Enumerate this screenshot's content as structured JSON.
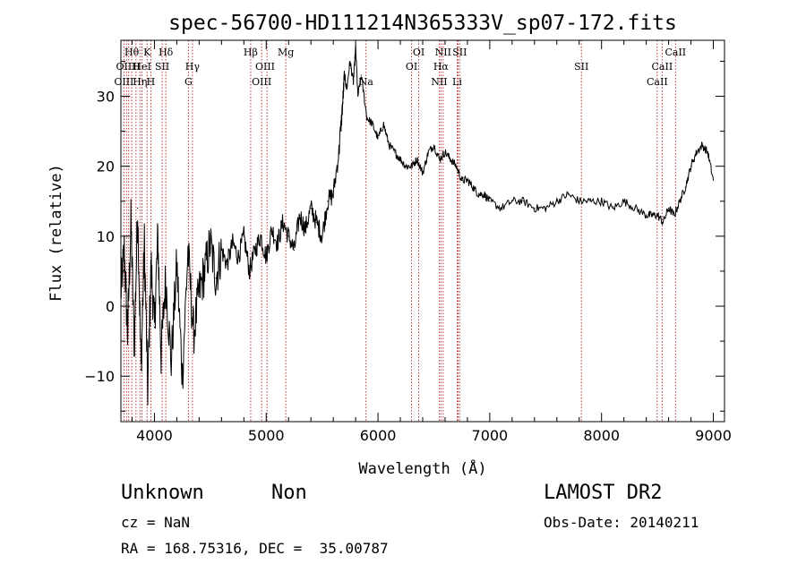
{
  "chart_data": {
    "type": "line",
    "title": "spec-56700-HD111214N365333V_sp07-172.fits",
    "xlabel": "Wavelength (Å)",
    "ylabel": "Flux (relative)",
    "xlim": [
      3700,
      9100
    ],
    "ylim": [
      -16.5,
      38
    ],
    "x_ticks": [
      4000,
      5000,
      6000,
      7000,
      8000,
      9000
    ],
    "y_ticks": [
      -10,
      0,
      10,
      20,
      30
    ],
    "grid": false,
    "series_color": "#000000",
    "line_color": "#b22222",
    "series": [
      {
        "x": [
          3700,
          3730,
          3760,
          3790,
          3820,
          3850,
          3880,
          3910,
          3940,
          3970,
          4000,
          4030,
          4060,
          4100,
          4150,
          4200,
          4250,
          4300,
          4350,
          4400,
          4450,
          4500,
          4550,
          4600,
          4650,
          4700,
          4750,
          4800,
          4850,
          4900,
          4950,
          5000,
          5050,
          5100,
          5150,
          5200,
          5250,
          5300,
          5350,
          5400,
          5450,
          5500,
          5550,
          5600,
          5650,
          5680,
          5700,
          5720,
          5750,
          5780,
          5800,
          5820,
          5850,
          5900,
          5950,
          6000,
          6050,
          6100,
          6150,
          6200,
          6250,
          6300,
          6350,
          6400,
          6450,
          6500,
          6550,
          6600,
          6650,
          6700,
          6750,
          6800,
          6850,
          6900,
          6950,
          7000,
          7100,
          7200,
          7300,
          7400,
          7500,
          7600,
          7700,
          7800,
          7900,
          8000,
          8100,
          8200,
          8300,
          8400,
          8450,
          8500,
          8550,
          8600,
          8650,
          8700,
          8750,
          8800,
          8850,
          8900,
          8950,
          9000
        ],
        "y": [
          2,
          8,
          -4,
          12,
          -6,
          14,
          -9,
          9,
          -12,
          6,
          -3,
          10,
          -7,
          4,
          -8,
          6,
          -10,
          8,
          -4,
          2,
          5,
          9,
          4,
          8,
          6,
          9,
          7,
          10,
          5,
          8,
          10,
          7,
          11,
          9,
          12,
          10,
          8,
          13,
          11,
          14,
          12,
          10,
          15,
          16,
          22,
          28,
          33,
          31,
          35,
          32,
          37,
          30,
          33,
          27,
          26,
          24,
          26,
          23,
          22,
          21,
          20,
          20,
          21,
          19,
          22,
          23,
          21,
          22,
          21,
          20,
          18,
          18,
          17,
          16,
          16,
          15,
          14,
          15,
          15,
          14,
          14,
          15,
          16,
          15,
          15,
          15,
          14,
          15,
          14,
          13,
          13,
          13,
          12,
          14,
          13,
          15,
          17,
          20,
          22,
          23,
          22,
          18
        ]
      }
    ],
    "line_labels": [
      {
        "text": "Hθ",
        "x": 3797,
        "row": 1
      },
      {
        "text": "K",
        "x": 3934,
        "row": 1
      },
      {
        "text": "Hδ",
        "x": 4102,
        "row": 1
      },
      {
        "text": "Hβ",
        "x": 4861,
        "row": 1
      },
      {
        "text": "Mg",
        "x": 5175,
        "row": 1
      },
      {
        "text": "OI",
        "x": 6364,
        "row": 1
      },
      {
        "text": "NII",
        "x": 6583,
        "row": 1
      },
      {
        "text": "SII",
        "x": 6731,
        "row": 1
      },
      {
        "text": "CaII",
        "x": 8662,
        "row": 1
      },
      {
        "text": "OII",
        "x": 3727,
        "row": 2
      },
      {
        "text": "H",
        "x": 3835,
        "row": 2
      },
      {
        "text": "HeI",
        "x": 3889,
        "row": 2
      },
      {
        "text": "SII",
        "x": 4069,
        "row": 2
      },
      {
        "text": "Hγ",
        "x": 4340,
        "row": 2
      },
      {
        "text": "OIII",
        "x": 4990,
        "row": 2
      },
      {
        "text": "OI",
        "x": 6300,
        "row": 2
      },
      {
        "text": "Hα",
        "x": 6563,
        "row": 2
      },
      {
        "text": "SII",
        "x": 7820,
        "row": 2
      },
      {
        "text": "CaII",
        "x": 8542,
        "row": 2
      },
      {
        "text": "OIII",
        "x": 3727,
        "row": 3
      },
      {
        "text": "Hη",
        "x": 3870,
        "row": 3
      },
      {
        "text": "H",
        "x": 3968,
        "row": 3
      },
      {
        "text": "G",
        "x": 4304,
        "row": 3
      },
      {
        "text": "OIII",
        "x": 4959,
        "row": 3
      },
      {
        "text": "Na",
        "x": 5893,
        "row": 3
      },
      {
        "text": "NII",
        "x": 6548,
        "row": 3
      },
      {
        "text": "Li",
        "x": 6708,
        "row": 3
      },
      {
        "text": "CaII",
        "x": 8498,
        "row": 3
      }
    ],
    "lines_x": [
      3727,
      3750,
      3770,
      3797,
      3835,
      3870,
      3889,
      3934,
      3968,
      4069,
      4102,
      4304,
      4340,
      4861,
      4959,
      5007,
      5175,
      5893,
      6300,
      6364,
      6548,
      6563,
      6583,
      6708,
      6717,
      6731,
      7820,
      8498,
      8542,
      8662
    ]
  },
  "info": {
    "object_class": "Unknown",
    "object_subclass": "Non",
    "survey": "LAMOST DR2",
    "redshift": "cz = NaN",
    "obs_date": "Obs-Date: 20140211",
    "coords": "RA = 168.75316, DEC =  35.00787"
  }
}
